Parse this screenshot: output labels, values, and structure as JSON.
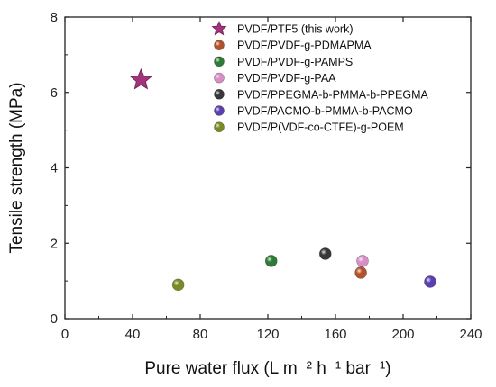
{
  "chart_data": {
    "type": "scatter",
    "xlabel": "Pure water flux (L m⁻² h⁻¹ bar⁻¹)",
    "ylabel": "Tensile strength (MPa)",
    "xlim": [
      0,
      240
    ],
    "ylim": [
      0,
      8
    ],
    "xticks": [
      0,
      40,
      80,
      120,
      160,
      200,
      240
    ],
    "yticks": [
      0,
      2,
      4,
      6,
      8
    ],
    "grid": false,
    "legend_position": "top-right",
    "series": [
      {
        "name": "PVDF/PTF5 (this work)",
        "marker": "star",
        "color": "#a2357a",
        "points": [
          {
            "x": 45,
            "y": 6.33
          }
        ]
      },
      {
        "name": "PVDF/PVDF-g-PDMAPMA",
        "marker": "sphere",
        "color": "#b3522a",
        "points": [
          {
            "x": 175,
            "y": 1.22
          }
        ]
      },
      {
        "name": "PVDF/PVDF-g-PAMPS",
        "marker": "sphere",
        "color": "#2f7a36",
        "points": [
          {
            "x": 122,
            "y": 1.53
          }
        ]
      },
      {
        "name": "PVDF/PVDF-g-PAA",
        "marker": "sphere",
        "color": "#d88fc6",
        "points": [
          {
            "x": 176,
            "y": 1.53
          }
        ]
      },
      {
        "name": "PVDF/PPEGMA-b-PMMA-b-PPEGMA",
        "marker": "sphere",
        "color": "#383838",
        "points": [
          {
            "x": 154,
            "y": 1.72
          }
        ]
      },
      {
        "name": "PVDF/PACMO-b-PMMA-b-PACMO",
        "marker": "sphere",
        "color": "#5b3fb0",
        "points": [
          {
            "x": 216,
            "y": 0.98
          }
        ]
      },
      {
        "name": "PVDF/P(VDF-co-CTFE)-g-POEM",
        "marker": "sphere",
        "color": "#7a8a25",
        "points": [
          {
            "x": 67,
            "y": 0.9
          }
        ]
      }
    ]
  }
}
